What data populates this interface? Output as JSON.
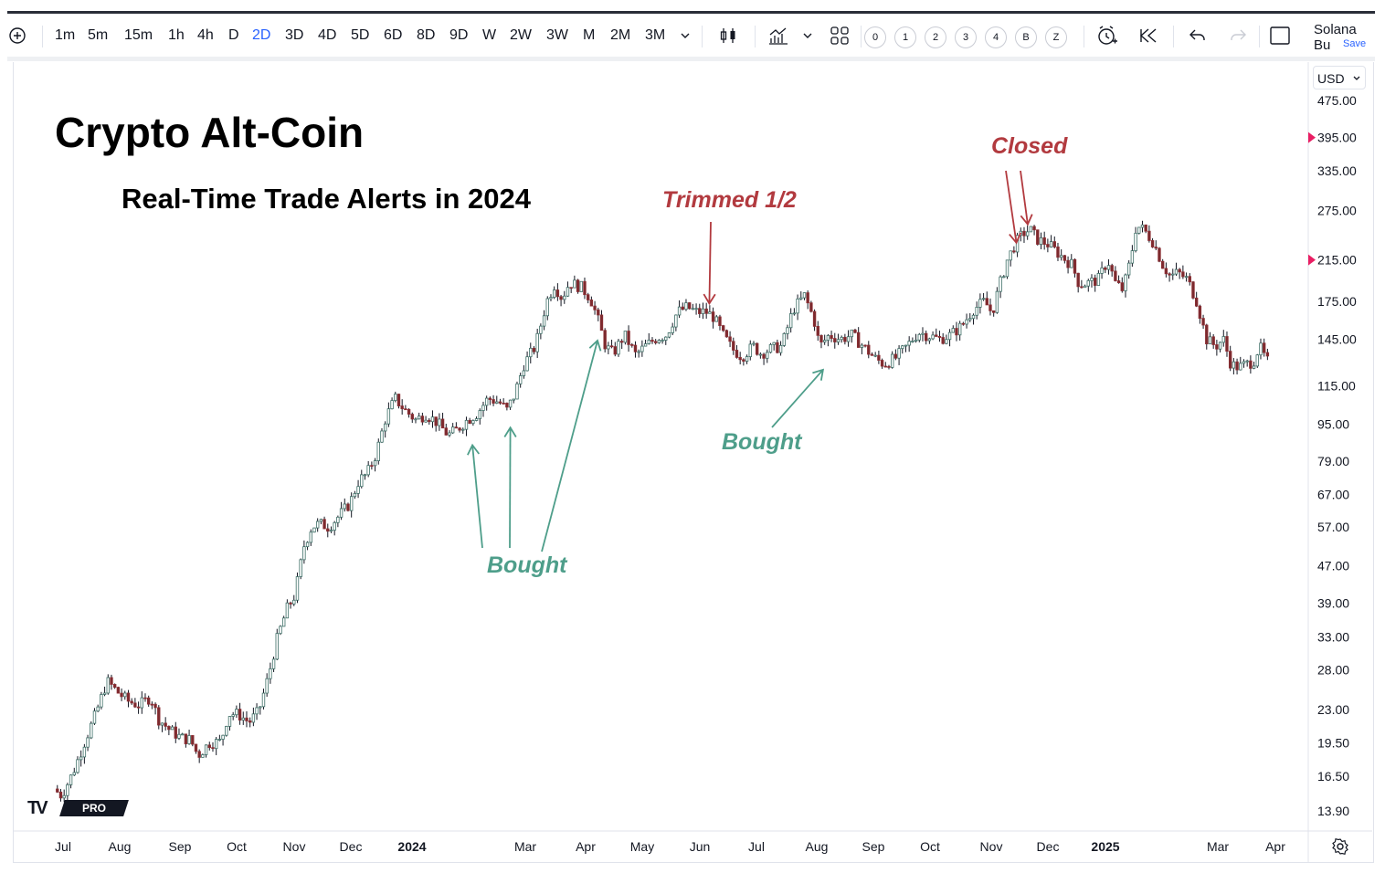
{
  "toolbar": {
    "intervals": [
      "1m",
      "5m",
      "15m",
      "1h",
      "4h",
      "D",
      "2D",
      "3D",
      "4D",
      "5D",
      "6D",
      "8D",
      "9D",
      "W",
      "2W",
      "3W",
      "M",
      "2M",
      "3M"
    ],
    "active_interval": "2D",
    "layout_slots": [
      "0",
      "1",
      "2",
      "3",
      "4",
      "B",
      "Z"
    ],
    "account_name": "Solana Bu",
    "save_label": "Save",
    "icons": [
      "add-symbol-icon",
      "chevron-down-icon",
      "candles-icon",
      "indicators-icon",
      "layouts-icon",
      "alert-icon",
      "replay-icon",
      "undo-icon",
      "redo-icon",
      "fullscreen-icon"
    ]
  },
  "price_scale": {
    "currency": "USD",
    "settings_icon": "gear-icon"
  },
  "logo": {
    "text": "PRO",
    "mark": "TV"
  },
  "colors": {
    "up": "#26a69a",
    "down": "#ef5350",
    "candle_dark": "#131722",
    "red_annotation": "#b23a3f",
    "green_annotation": "#4e9e8a",
    "price_marker": "#e91e63"
  },
  "chart_data": {
    "type": "candlestick",
    "title": "Crypto Alt-Coin",
    "subtitle": "Real-Time Trade Alerts in 2024",
    "y_scale": "log",
    "ylim": [
      12.5,
      500
    ],
    "y_ticks": [
      "475.00",
      "395.00",
      "335.00",
      "275.00",
      "215.00",
      "175.00",
      "145.00",
      "115.00",
      "95.00",
      "79.00",
      "67.00",
      "57.00",
      "47.00",
      "39.00",
      "33.00",
      "28.00",
      "23.00",
      "19.50",
      "16.50",
      "13.90"
    ],
    "x_ticks": [
      "Jul",
      "Aug",
      "Sep",
      "Oct",
      "Nov",
      "Dec",
      "2024",
      "Mar",
      "Apr",
      "May",
      "Jun",
      "Jul",
      "Aug",
      "Sep",
      "Oct",
      "Nov",
      "Dec",
      "2025",
      "Mar",
      "Apr"
    ],
    "x_bold": [
      "2024",
      "2025"
    ],
    "price_markers": [
      395,
      215
    ],
    "price_path": [
      [
        "2023-06-28",
        15.5
      ],
      [
        "2023-07-02",
        15.0
      ],
      [
        "2023-07-08",
        16.8
      ],
      [
        "2023-07-14",
        19.5
      ],
      [
        "2023-07-20",
        22.5
      ],
      [
        "2023-07-26",
        26.5
      ],
      [
        "2023-08-01",
        25.0
      ],
      [
        "2023-08-06",
        24.0
      ],
      [
        "2023-08-12",
        23.5
      ],
      [
        "2023-08-18",
        24.5
      ],
      [
        "2023-08-22",
        22.0
      ],
      [
        "2023-08-28",
        20.8
      ],
      [
        "2023-09-03",
        20.0
      ],
      [
        "2023-09-08",
        19.8
      ],
      [
        "2023-09-12",
        18.3
      ],
      [
        "2023-09-18",
        19.5
      ],
      [
        "2023-09-24",
        19.6
      ],
      [
        "2023-09-28",
        22.5
      ],
      [
        "2023-10-03",
        22.5
      ],
      [
        "2023-10-09",
        21.6
      ],
      [
        "2023-10-14",
        22.8
      ],
      [
        "2023-10-19",
        27.0
      ],
      [
        "2023-10-24",
        33.0
      ],
      [
        "2023-10-29",
        38.0
      ],
      [
        "2023-11-02",
        40.5
      ],
      [
        "2023-11-07",
        52.0
      ],
      [
        "2023-11-11",
        57.0
      ],
      [
        "2023-11-15",
        58.0
      ],
      [
        "2023-11-20",
        57.0
      ],
      [
        "2023-11-25",
        60.0
      ],
      [
        "2023-12-01",
        64.0
      ],
      [
        "2023-12-06",
        72.0
      ],
      [
        "2023-12-10",
        74.0
      ],
      [
        "2023-12-15",
        82.0
      ],
      [
        "2023-12-20",
        98.0
      ],
      [
        "2023-12-25",
        108.0
      ],
      [
        "2023-12-30",
        102.0
      ],
      [
        "2024-01-05",
        97.0
      ],
      [
        "2024-01-10",
        100.0
      ],
      [
        "2024-01-16",
        96.0
      ],
      [
        "2024-01-22",
        90.0
      ],
      [
        "2024-01-26",
        92.0
      ],
      [
        "2024-02-01",
        97.0
      ],
      [
        "2024-02-06",
        100.0
      ],
      [
        "2024-02-12",
        108.0
      ],
      [
        "2024-02-18",
        106.0
      ],
      [
        "2024-02-22",
        102.0
      ],
      [
        "2024-02-26",
        110.0
      ],
      [
        "2024-03-02",
        128.0
      ],
      [
        "2024-03-08",
        140.0
      ],
      [
        "2024-03-14",
        175.0
      ],
      [
        "2024-03-18",
        190.0
      ],
      [
        "2024-03-22",
        178.0
      ],
      [
        "2024-03-26",
        192.0
      ],
      [
        "2024-04-01",
        188.0
      ],
      [
        "2024-04-06",
        178.0
      ],
      [
        "2024-04-10",
        160.0
      ],
      [
        "2024-04-14",
        140.0
      ],
      [
        "2024-04-18",
        135.0
      ],
      [
        "2024-04-24",
        148.0
      ],
      [
        "2024-04-30",
        134.0
      ],
      [
        "2024-05-05",
        140.0
      ],
      [
        "2024-05-11",
        146.0
      ],
      [
        "2024-05-16",
        148.0
      ],
      [
        "2024-05-22",
        166.0
      ],
      [
        "2024-05-27",
        170.0
      ],
      [
        "2024-06-01",
        166.0
      ],
      [
        "2024-06-06",
        166.0
      ],
      [
        "2024-06-10",
        162.0
      ],
      [
        "2024-06-15",
        148.0
      ],
      [
        "2024-06-20",
        138.0
      ],
      [
        "2024-06-25",
        133.0
      ],
      [
        "2024-07-01",
        140.0
      ],
      [
        "2024-07-05",
        135.0
      ],
      [
        "2024-07-10",
        138.0
      ],
      [
        "2024-07-16",
        140.0
      ],
      [
        "2024-07-22",
        168.0
      ],
      [
        "2024-07-28",
        180.0
      ],
      [
        "2024-08-02",
        160.0
      ],
      [
        "2024-08-05",
        140.0
      ],
      [
        "2024-08-10",
        148.0
      ],
      [
        "2024-08-16",
        145.0
      ],
      [
        "2024-08-22",
        148.0
      ],
      [
        "2024-08-28",
        140.0
      ],
      [
        "2024-09-03",
        132.0
      ],
      [
        "2024-09-08",
        128.0
      ],
      [
        "2024-09-14",
        132.0
      ],
      [
        "2024-09-20",
        140.0
      ],
      [
        "2024-09-26",
        150.0
      ],
      [
        "2024-10-01",
        148.0
      ],
      [
        "2024-10-07",
        145.0
      ],
      [
        "2024-10-13",
        148.0
      ],
      [
        "2024-10-19",
        155.0
      ],
      [
        "2024-10-25",
        168.0
      ],
      [
        "2024-10-31",
        175.0
      ],
      [
        "2024-11-04",
        165.0
      ],
      [
        "2024-11-08",
        190.0
      ],
      [
        "2024-11-12",
        215.0
      ],
      [
        "2024-11-16",
        232.0
      ],
      [
        "2024-11-20",
        245.0
      ],
      [
        "2024-11-24",
        250.0
      ],
      [
        "2024-11-28",
        238.0
      ],
      [
        "2024-12-04",
        232.0
      ],
      [
        "2024-12-10",
        220.0
      ],
      [
        "2024-12-16",
        210.0
      ],
      [
        "2024-12-20",
        190.0
      ],
      [
        "2024-12-25",
        192.0
      ],
      [
        "2024-12-30",
        195.0
      ],
      [
        "2025-01-04",
        215.0
      ],
      [
        "2025-01-08",
        192.0
      ],
      [
        "2025-01-12",
        185.0
      ],
      [
        "2025-01-16",
        215.0
      ],
      [
        "2025-01-19",
        255.0
      ],
      [
        "2025-01-23",
        250.0
      ],
      [
        "2025-01-28",
        235.0
      ],
      [
        "2025-02-02",
        210.0
      ],
      [
        "2025-02-06",
        198.0
      ],
      [
        "2025-02-10",
        202.0
      ],
      [
        "2025-02-15",
        195.0
      ],
      [
        "2025-02-20",
        175.0
      ],
      [
        "2025-02-25",
        145.0
      ],
      [
        "2025-03-02",
        140.0
      ],
      [
        "2025-03-06",
        145.0
      ],
      [
        "2025-03-10",
        128.0
      ],
      [
        "2025-03-14",
        126.0
      ],
      [
        "2025-03-18",
        128.0
      ],
      [
        "2025-03-22",
        130.0
      ],
      [
        "2025-03-25",
        140.0
      ],
      [
        "2025-03-29",
        130.0
      ]
    ],
    "annotations": [
      {
        "label": "Trimmed 1/2",
        "color": "red",
        "arrows_to": [
          [
            "2024-06-06",
            170
          ]
        ]
      },
      {
        "label": "Closed",
        "color": "red",
        "arrows_to": [
          [
            "2024-11-15",
            230
          ],
          [
            "2024-11-21",
            252
          ]
        ]
      },
      {
        "label": "Bought",
        "color": "green",
        "arrows_to": [
          [
            "2024-02-02",
            88
          ],
          [
            "2024-02-22",
            96
          ],
          [
            "2024-04-08",
            148
          ]
        ]
      },
      {
        "label": "Bought",
        "color": "green",
        "arrows_to": [
          [
            "2024-08-05",
            128
          ]
        ]
      }
    ]
  }
}
